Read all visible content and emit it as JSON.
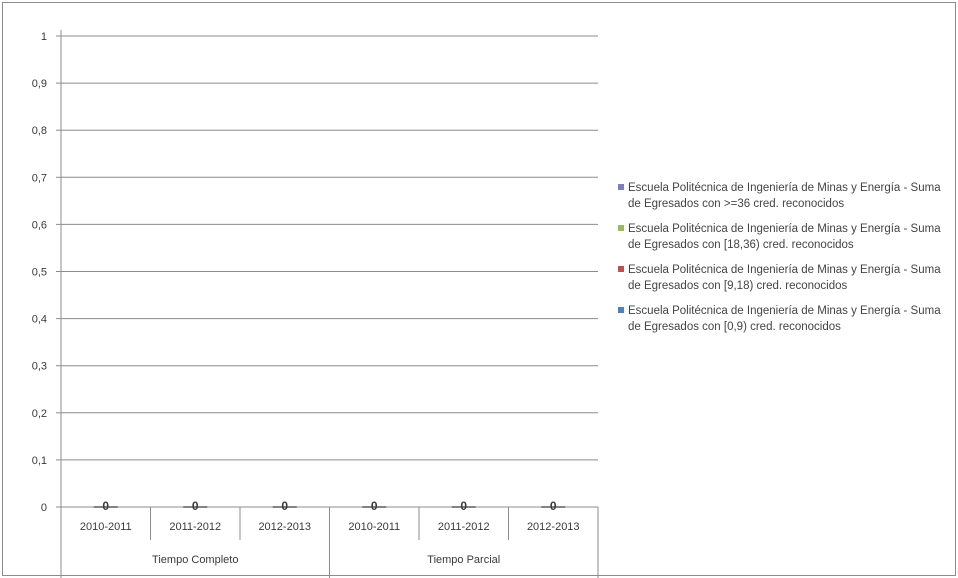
{
  "chart_data": {
    "type": "bar",
    "y_ticks": [
      "1",
      "0,9",
      "0,8",
      "0,7",
      "0,6",
      "0,5",
      "0,4",
      "0,3",
      "0,2",
      "0,1",
      "0"
    ],
    "ylim": [
      0,
      1
    ],
    "grid": true,
    "legend_position": "right",
    "categories": [
      "2010-2011",
      "2011-2012",
      "2012-2013",
      "2010-2011",
      "2011-2012",
      "2012-2013"
    ],
    "groups": [
      {
        "label": "Tiempo Completo",
        "span": 3
      },
      {
        "label": "Tiempo Parcial",
        "span": 3
      }
    ],
    "data_labels": [
      "0",
      "0",
      "0",
      "0",
      "0",
      "0"
    ],
    "series": [
      {
        "name": "Escuela Politécnica de Ingeniería de Minas y Energía - Suma de Egresados con >=36 cred. reconocidos",
        "color": "#7f7fbf",
        "values": [
          0,
          0,
          0,
          0,
          0,
          0
        ]
      },
      {
        "name": "Escuela Politécnica de Ingeniería de Minas y Energía - Suma de Egresados con [18,36) cred. reconocidos",
        "color": "#9bbb59",
        "values": [
          0,
          0,
          0,
          0,
          0,
          0
        ]
      },
      {
        "name": "Escuela Politécnica de Ingeniería de Minas y Energía - Suma de Egresados con [9,18) cred. reconocidos",
        "color": "#c0504d",
        "values": [
          0,
          0,
          0,
          0,
          0,
          0
        ]
      },
      {
        "name": "Escuela Politécnica de Ingeniería de Minas y Energía - Suma de Egresados con [0,9) cred. reconocidos",
        "color": "#4f81bd",
        "values": [
          0,
          0,
          0,
          0,
          0,
          0
        ]
      }
    ]
  }
}
